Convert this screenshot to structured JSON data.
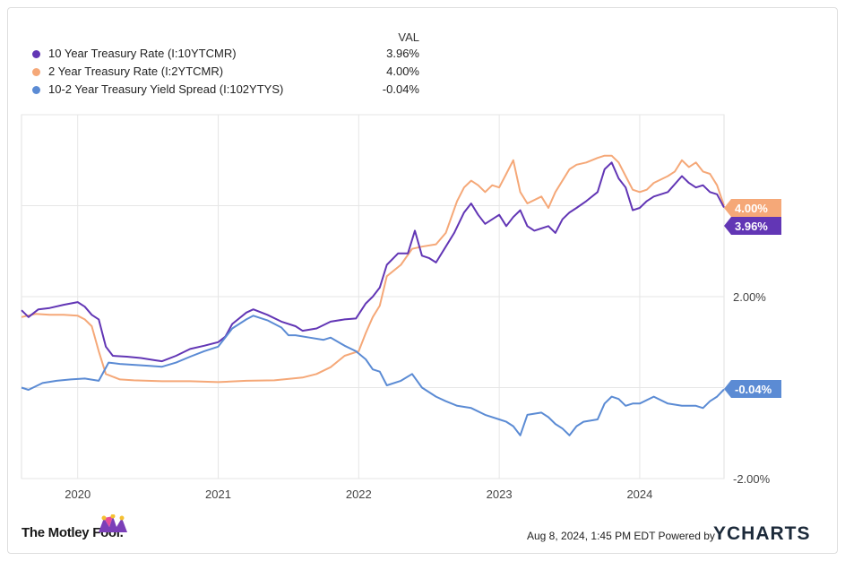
{
  "legend": {
    "header": "VAL",
    "items": [
      {
        "name": "10 Year Treasury Rate (I:10YTCMR)",
        "value": "3.96%",
        "color": "#6236b5"
      },
      {
        "name": "2 Year Treasury Rate (I:2YTCMR)",
        "value": "4.00%",
        "color": "#f5a878"
      },
      {
        "name": "10-2 Year Treasury Yield Spread (I:102YTYS)",
        "value": "-0.04%",
        "color": "#5b8bd4"
      }
    ]
  },
  "footer": {
    "brand_left": "The Motley Fool.",
    "timestamp": "Aug 8, 2024, 1:45 PM EDT Powered by",
    "brand_right": "YCHARTS"
  },
  "chart_data": {
    "type": "line",
    "x_ticks": [
      "2020",
      "2021",
      "2022",
      "2023",
      "2024"
    ],
    "y_ticks": [
      "2.00%",
      "-2.00%"
    ],
    "ylim": [
      -2.0,
      6.0
    ],
    "grid": true,
    "end_labels": [
      "4.00%",
      "3.96%",
      "-0.04%"
    ],
    "series": [
      {
        "name": "10 Year Treasury Rate (I:10YTCMR)",
        "color": "#6236b5",
        "points": [
          [
            2019.6,
            1.7
          ],
          [
            2019.65,
            1.55
          ],
          [
            2019.72,
            1.72
          ],
          [
            2019.8,
            1.75
          ],
          [
            2019.9,
            1.82
          ],
          [
            2020.0,
            1.88
          ],
          [
            2020.05,
            1.78
          ],
          [
            2020.1,
            1.6
          ],
          [
            2020.15,
            1.5
          ],
          [
            2020.2,
            0.9
          ],
          [
            2020.25,
            0.7
          ],
          [
            2020.35,
            0.68
          ],
          [
            2020.45,
            0.65
          ],
          [
            2020.55,
            0.6
          ],
          [
            2020.6,
            0.58
          ],
          [
            2020.7,
            0.7
          ],
          [
            2020.8,
            0.85
          ],
          [
            2020.9,
            0.92
          ],
          [
            2021.0,
            1.0
          ],
          [
            2021.05,
            1.12
          ],
          [
            2021.1,
            1.4
          ],
          [
            2021.2,
            1.65
          ],
          [
            2021.25,
            1.72
          ],
          [
            2021.35,
            1.6
          ],
          [
            2021.45,
            1.45
          ],
          [
            2021.55,
            1.35
          ],
          [
            2021.6,
            1.25
          ],
          [
            2021.7,
            1.3
          ],
          [
            2021.8,
            1.45
          ],
          [
            2021.9,
            1.5
          ],
          [
            2021.98,
            1.52
          ],
          [
            2022.05,
            1.85
          ],
          [
            2022.1,
            2.0
          ],
          [
            2022.15,
            2.2
          ],
          [
            2022.2,
            2.7
          ],
          [
            2022.28,
            2.95
          ],
          [
            2022.35,
            2.95
          ],
          [
            2022.4,
            3.45
          ],
          [
            2022.45,
            2.9
          ],
          [
            2022.5,
            2.85
          ],
          [
            2022.55,
            2.75
          ],
          [
            2022.62,
            3.1
          ],
          [
            2022.68,
            3.4
          ],
          [
            2022.75,
            3.85
          ],
          [
            2022.8,
            4.05
          ],
          [
            2022.85,
            3.8
          ],
          [
            2022.9,
            3.6
          ],
          [
            2022.95,
            3.7
          ],
          [
            2023.0,
            3.8
          ],
          [
            2023.05,
            3.55
          ],
          [
            2023.1,
            3.75
          ],
          [
            2023.15,
            3.9
          ],
          [
            2023.2,
            3.55
          ],
          [
            2023.25,
            3.45
          ],
          [
            2023.35,
            3.55
          ],
          [
            2023.4,
            3.4
          ],
          [
            2023.45,
            3.7
          ],
          [
            2023.5,
            3.85
          ],
          [
            2023.55,
            3.95
          ],
          [
            2023.62,
            4.1
          ],
          [
            2023.7,
            4.3
          ],
          [
            2023.75,
            4.8
          ],
          [
            2023.8,
            4.95
          ],
          [
            2023.85,
            4.6
          ],
          [
            2023.9,
            4.4
          ],
          [
            2023.95,
            3.9
          ],
          [
            2024.0,
            3.95
          ],
          [
            2024.05,
            4.1
          ],
          [
            2024.1,
            4.2
          ],
          [
            2024.2,
            4.3
          ],
          [
            2024.3,
            4.65
          ],
          [
            2024.35,
            4.5
          ],
          [
            2024.4,
            4.4
          ],
          [
            2024.45,
            4.45
          ],
          [
            2024.5,
            4.3
          ],
          [
            2024.55,
            4.25
          ],
          [
            2024.6,
            3.96
          ]
        ]
      },
      {
        "name": "2 Year Treasury Rate (I:2YTCMR)",
        "color": "#f5a878",
        "points": [
          [
            2019.6,
            1.55
          ],
          [
            2019.7,
            1.62
          ],
          [
            2019.8,
            1.6
          ],
          [
            2019.9,
            1.6
          ],
          [
            2020.0,
            1.58
          ],
          [
            2020.05,
            1.5
          ],
          [
            2020.1,
            1.35
          ],
          [
            2020.15,
            0.8
          ],
          [
            2020.2,
            0.3
          ],
          [
            2020.3,
            0.18
          ],
          [
            2020.4,
            0.16
          ],
          [
            2020.6,
            0.14
          ],
          [
            2020.8,
            0.14
          ],
          [
            2021.0,
            0.12
          ],
          [
            2021.2,
            0.15
          ],
          [
            2021.4,
            0.16
          ],
          [
            2021.6,
            0.22
          ],
          [
            2021.7,
            0.3
          ],
          [
            2021.8,
            0.45
          ],
          [
            2021.9,
            0.7
          ],
          [
            2022.0,
            0.8
          ],
          [
            2022.05,
            1.2
          ],
          [
            2022.1,
            1.55
          ],
          [
            2022.15,
            1.8
          ],
          [
            2022.2,
            2.45
          ],
          [
            2022.3,
            2.7
          ],
          [
            2022.38,
            3.05
          ],
          [
            2022.45,
            3.1
          ],
          [
            2022.55,
            3.15
          ],
          [
            2022.62,
            3.4
          ],
          [
            2022.7,
            4.1
          ],
          [
            2022.75,
            4.4
          ],
          [
            2022.8,
            4.55
          ],
          [
            2022.85,
            4.45
          ],
          [
            2022.9,
            4.3
          ],
          [
            2022.95,
            4.45
          ],
          [
            2023.0,
            4.4
          ],
          [
            2023.05,
            4.7
          ],
          [
            2023.1,
            5.0
          ],
          [
            2023.15,
            4.3
          ],
          [
            2023.2,
            4.05
          ],
          [
            2023.3,
            4.2
          ],
          [
            2023.35,
            3.95
          ],
          [
            2023.4,
            4.3
          ],
          [
            2023.5,
            4.8
          ],
          [
            2023.55,
            4.9
          ],
          [
            2023.62,
            4.95
          ],
          [
            2023.7,
            5.05
          ],
          [
            2023.75,
            5.1
          ],
          [
            2023.8,
            5.1
          ],
          [
            2023.85,
            4.95
          ],
          [
            2023.9,
            4.65
          ],
          [
            2023.95,
            4.35
          ],
          [
            2024.0,
            4.3
          ],
          [
            2024.05,
            4.35
          ],
          [
            2024.1,
            4.5
          ],
          [
            2024.2,
            4.65
          ],
          [
            2024.25,
            4.75
          ],
          [
            2024.3,
            5.0
          ],
          [
            2024.35,
            4.85
          ],
          [
            2024.4,
            4.95
          ],
          [
            2024.45,
            4.75
          ],
          [
            2024.5,
            4.7
          ],
          [
            2024.55,
            4.45
          ],
          [
            2024.6,
            4.0
          ]
        ]
      },
      {
        "name": "10-2 Year Treasury Yield Spread (I:102YTYS)",
        "color": "#5b8bd4",
        "points": [
          [
            2019.6,
            0.0
          ],
          [
            2019.65,
            -0.05
          ],
          [
            2019.75,
            0.1
          ],
          [
            2019.85,
            0.15
          ],
          [
            2019.95,
            0.18
          ],
          [
            2020.05,
            0.2
          ],
          [
            2020.15,
            0.15
          ],
          [
            2020.22,
            0.55
          ],
          [
            2020.3,
            0.52
          ],
          [
            2020.4,
            0.5
          ],
          [
            2020.5,
            0.48
          ],
          [
            2020.6,
            0.46
          ],
          [
            2020.7,
            0.55
          ],
          [
            2020.8,
            0.68
          ],
          [
            2020.9,
            0.8
          ],
          [
            2021.0,
            0.9
          ],
          [
            2021.1,
            1.3
          ],
          [
            2021.2,
            1.5
          ],
          [
            2021.25,
            1.58
          ],
          [
            2021.35,
            1.48
          ],
          [
            2021.45,
            1.32
          ],
          [
            2021.5,
            1.15
          ],
          [
            2021.55,
            1.15
          ],
          [
            2021.65,
            1.1
          ],
          [
            2021.75,
            1.05
          ],
          [
            2021.8,
            1.1
          ],
          [
            2021.9,
            0.92
          ],
          [
            2021.98,
            0.8
          ],
          [
            2022.05,
            0.62
          ],
          [
            2022.1,
            0.4
          ],
          [
            2022.15,
            0.35
          ],
          [
            2022.2,
            0.05
          ],
          [
            2022.3,
            0.15
          ],
          [
            2022.38,
            0.3
          ],
          [
            2022.45,
            0.0
          ],
          [
            2022.55,
            -0.2
          ],
          [
            2022.62,
            -0.3
          ],
          [
            2022.7,
            -0.4
          ],
          [
            2022.8,
            -0.45
          ],
          [
            2022.9,
            -0.6
          ],
          [
            2023.0,
            -0.7
          ],
          [
            2023.05,
            -0.75
          ],
          [
            2023.1,
            -0.85
          ],
          [
            2023.15,
            -1.05
          ],
          [
            2023.2,
            -0.6
          ],
          [
            2023.3,
            -0.55
          ],
          [
            2023.35,
            -0.65
          ],
          [
            2023.4,
            -0.8
          ],
          [
            2023.45,
            -0.9
          ],
          [
            2023.5,
            -1.05
          ],
          [
            2023.55,
            -0.85
          ],
          [
            2023.6,
            -0.75
          ],
          [
            2023.7,
            -0.7
          ],
          [
            2023.75,
            -0.35
          ],
          [
            2023.8,
            -0.2
          ],
          [
            2023.85,
            -0.25
          ],
          [
            2023.9,
            -0.4
          ],
          [
            2023.95,
            -0.35
          ],
          [
            2024.0,
            -0.35
          ],
          [
            2024.1,
            -0.2
          ],
          [
            2024.2,
            -0.35
          ],
          [
            2024.3,
            -0.4
          ],
          [
            2024.4,
            -0.4
          ],
          [
            2024.45,
            -0.45
          ],
          [
            2024.5,
            -0.3
          ],
          [
            2024.55,
            -0.2
          ],
          [
            2024.6,
            -0.04
          ]
        ]
      }
    ]
  }
}
